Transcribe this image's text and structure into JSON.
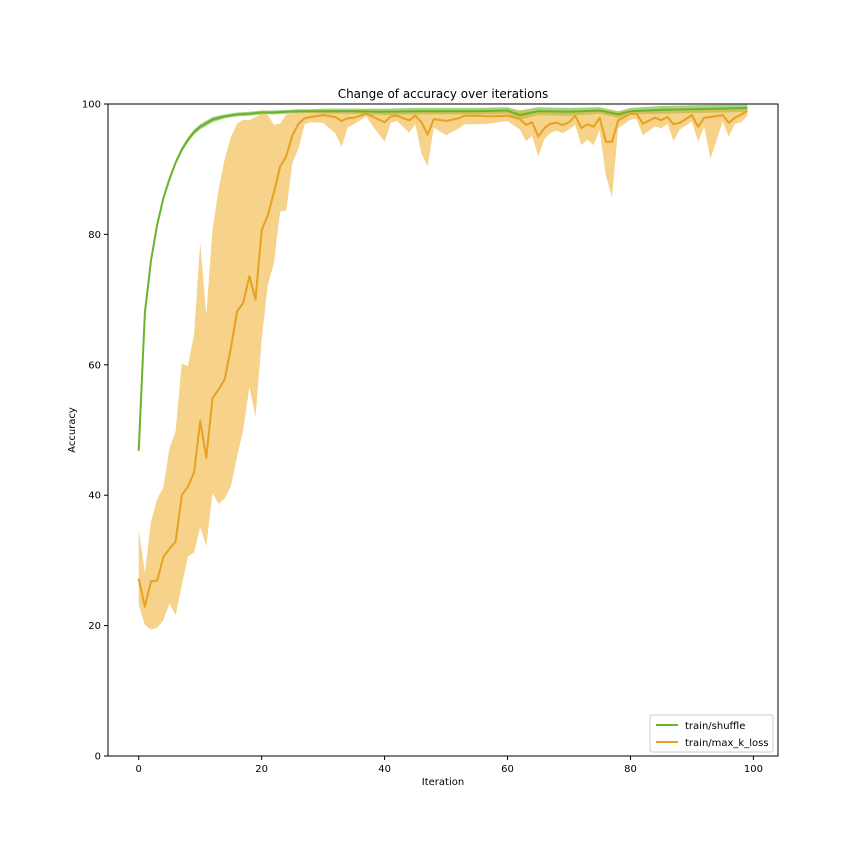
{
  "chart_data": {
    "type": "line",
    "title": "Change of accuracy over iterations",
    "xlabel": "Iteration",
    "ylabel": "Accuracy",
    "xlim": [
      -5,
      104
    ],
    "ylim": [
      0,
      100
    ],
    "xticks": [
      0,
      20,
      40,
      60,
      80,
      100
    ],
    "yticks": [
      0,
      20,
      40,
      60,
      80,
      100
    ],
    "grid": false,
    "legend_position": "lower-right",
    "series": [
      {
        "name": "train/shuffle",
        "color": "#6ab42d",
        "band_color": "#6ab42d",
        "x": [
          0,
          1,
          2,
          3,
          4,
          5,
          6,
          7,
          8,
          9,
          10,
          12,
          14,
          16,
          18,
          20,
          22,
          24,
          26,
          28,
          30,
          35,
          40,
          45,
          50,
          55,
          60,
          62,
          65,
          70,
          75,
          78,
          80,
          85,
          90,
          95,
          99
        ],
        "y": [
          46.8,
          68,
          76,
          81.5,
          85.5,
          88.5,
          91,
          93,
          94.5,
          95.7,
          96.5,
          97.6,
          98.1,
          98.4,
          98.5,
          98.7,
          98.7,
          98.8,
          98.9,
          98.9,
          98.9,
          98.9,
          98.8,
          98.9,
          98.9,
          98.9,
          99.0,
          98.3,
          98.9,
          98.8,
          99.0,
          98.4,
          98.9,
          99.1,
          99.2,
          99.3,
          99.4
        ],
        "lower": [
          46.5,
          67.5,
          75.5,
          81,
          85,
          88,
          90.6,
          92.6,
          94.1,
          95.3,
          96.1,
          97.2,
          97.8,
          98.1,
          98.2,
          98.4,
          98.4,
          98.5,
          98.6,
          98.6,
          98.5,
          98.5,
          98.3,
          98.4,
          98.4,
          98.4,
          98.5,
          97.6,
          98.3,
          98.2,
          98.5,
          97.9,
          98.4,
          98.5,
          98.6,
          98.7,
          98.8
        ],
        "upper": [
          47.1,
          68.5,
          76.5,
          82,
          86,
          89,
          91.4,
          93.4,
          94.9,
          96.1,
          96.9,
          98.0,
          98.4,
          98.7,
          98.8,
          99.0,
          99.0,
          99.1,
          99.2,
          99.2,
          99.3,
          99.3,
          99.3,
          99.4,
          99.4,
          99.4,
          99.5,
          99.0,
          99.5,
          99.4,
          99.5,
          98.9,
          99.4,
          99.7,
          99.8,
          99.9,
          99.9
        ]
      },
      {
        "name": "train/max_k_loss",
        "color": "#e6a21e",
        "band_color": "#f0b43c",
        "x": [
          0,
          1,
          2,
          3,
          4,
          5,
          6,
          7,
          8,
          9,
          10,
          11,
          12,
          13,
          14,
          15,
          16,
          17,
          18,
          19,
          20,
          21,
          22,
          23,
          24,
          25,
          26,
          27,
          28,
          30,
          32,
          33,
          34,
          35,
          37,
          38,
          40,
          41,
          42,
          44,
          45,
          46,
          47,
          48,
          50,
          52,
          53,
          55,
          57,
          60,
          62,
          63,
          64,
          65,
          66,
          67,
          68,
          69,
          70,
          71,
          72,
          73,
          74,
          75,
          76,
          77,
          78,
          80,
          81,
          82,
          84,
          85,
          86,
          87,
          88,
          90,
          91,
          92,
          93,
          95,
          96,
          97,
          98,
          99
        ],
        "y": [
          27.2,
          22.9,
          26.8,
          26.9,
          30.5,
          31.8,
          32.9,
          40.0,
          41.3,
          43.5,
          51.4,
          45.7,
          54.9,
          56.2,
          57.8,
          62.6,
          68.2,
          69.5,
          73.6,
          70.0,
          80.7,
          82.9,
          86.5,
          90.4,
          92.0,
          95.2,
          97.0,
          97.8,
          98.0,
          98.3,
          98.0,
          97.4,
          97.8,
          97.9,
          98.5,
          98.1,
          97.2,
          98.1,
          98.2,
          97.5,
          98.2,
          97.2,
          95.3,
          97.7,
          97.4,
          97.8,
          98.2,
          98.2,
          98.1,
          98.2,
          97.7,
          96.8,
          97.2,
          95.0,
          96.3,
          97.0,
          97.1,
          96.8,
          97.2,
          98.2,
          96.3,
          96.9,
          96.5,
          97.9,
          94.2,
          94.2,
          97.5,
          98.5,
          98.5,
          97.0,
          97.9,
          97.5,
          98.0,
          96.9,
          97.1,
          98.3,
          96.5,
          97.9,
          98.0,
          98.3,
          97.1,
          97.9,
          98.4,
          98.9
        ],
        "lower": [
          23.2,
          20.1,
          19.4,
          19.7,
          20.8,
          23.4,
          21.6,
          26.2,
          30.6,
          31.2,
          35.1,
          32.2,
          40.3,
          38.7,
          39.5,
          41.4,
          46.0,
          50.0,
          56.6,
          52.0,
          64.0,
          72.2,
          75.7,
          83.5,
          83.7,
          91.0,
          93.2,
          96.9,
          97.2,
          97.1,
          95.5,
          93.4,
          96.4,
          96.9,
          98.1,
          96.7,
          94.2,
          97.1,
          97.4,
          95.6,
          96.9,
          92.4,
          90.4,
          96.4,
          95.2,
          96.2,
          96.9,
          96.9,
          97.0,
          97.4,
          96.1,
          94.3,
          95.1,
          92.0,
          94.6,
          95.6,
          95.9,
          95.5,
          96.1,
          96.8,
          93.7,
          94.5,
          93.7,
          96.0,
          89.0,
          85.7,
          96.3,
          97.6,
          97.7,
          95.2,
          96.6,
          96.2,
          97.0,
          94.3,
          96.1,
          97.3,
          94.2,
          96.5,
          91.6,
          97.3,
          95.0,
          97.0,
          97.2,
          98.2
        ],
        "upper": [
          34.7,
          28.1,
          36.0,
          39.4,
          41.2,
          47.2,
          49.8,
          60.2,
          59.8,
          64.7,
          78.8,
          67.6,
          80.8,
          86.9,
          91.6,
          94.9,
          97.0,
          97.6,
          97.5,
          98.0,
          98.5,
          98.3,
          96.8,
          97.0,
          98.4,
          98.5,
          98.9,
          99.0,
          99.1,
          99.1,
          99.0,
          99.0,
          98.9,
          99.0,
          99.1,
          99.0,
          99.0,
          99.0,
          99.0,
          99.0,
          99.0,
          98.9,
          98.9,
          98.9,
          99.0,
          99.0,
          99.0,
          99.0,
          99.0,
          99.1,
          99.0,
          99.0,
          99.0,
          98.9,
          99.0,
          99.0,
          99.0,
          98.9,
          99.0,
          99.1,
          99.0,
          99.0,
          99.0,
          99.1,
          99.0,
          99.0,
          98.9,
          99.1,
          99.1,
          99.0,
          99.1,
          99.0,
          99.1,
          99.0,
          99.1,
          99.1,
          99.0,
          99.1,
          99.2,
          99.1,
          99.1,
          99.1,
          99.2,
          99.4
        ]
      }
    ]
  }
}
